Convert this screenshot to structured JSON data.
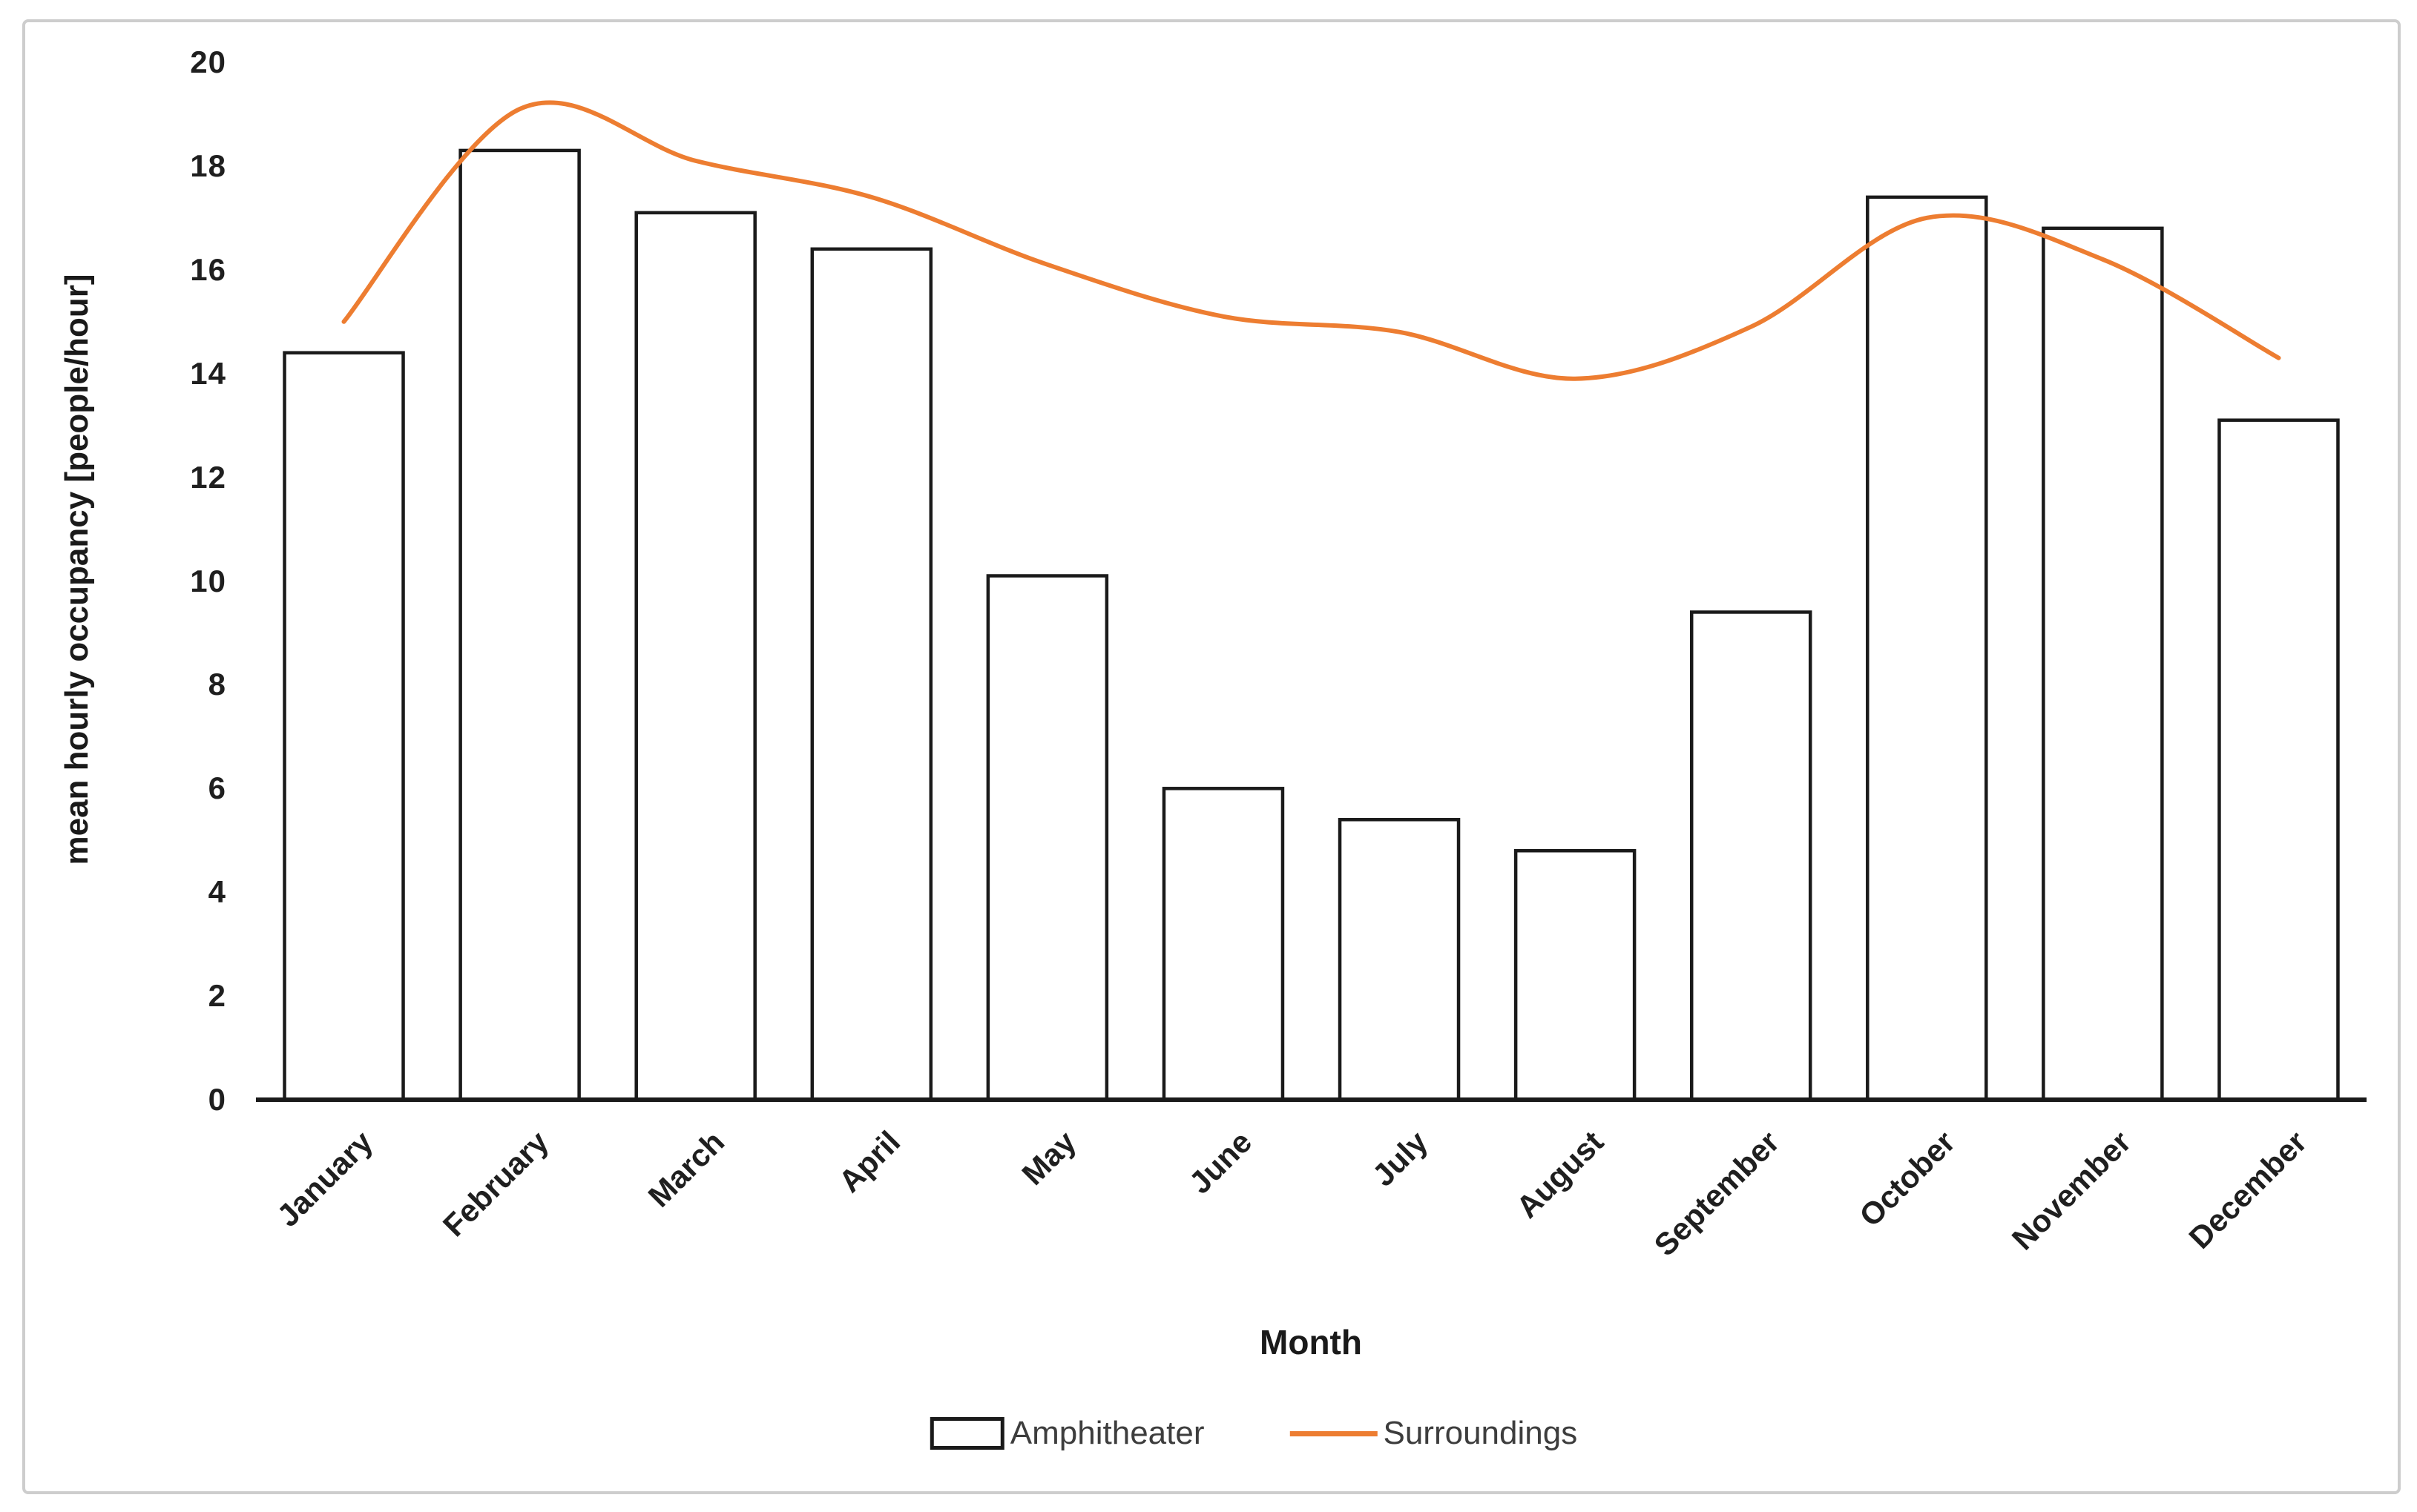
{
  "chart_data": {
    "type": "combo",
    "title": "",
    "xlabel": "Month",
    "ylabel": "mean hourly occupancy [people/hour]",
    "categories": [
      "January",
      "February",
      "March",
      "April",
      "May",
      "June",
      "July",
      "August",
      "September",
      "October",
      "November",
      "December"
    ],
    "series": [
      {
        "name": "Amphitheater",
        "type": "bar",
        "values": [
          14.4,
          18.3,
          17.1,
          16.4,
          10.1,
          6.0,
          5.4,
          4.8,
          9.4,
          17.4,
          16.8,
          13.1
        ]
      },
      {
        "name": "Surroundings",
        "type": "line",
        "smooth": true,
        "values": [
          15.0,
          19.1,
          18.1,
          17.4,
          16.1,
          15.1,
          14.8,
          13.9,
          14.9,
          17.0,
          16.2,
          14.3
        ]
      }
    ],
    "ylim": [
      0,
      20
    ],
    "yticks": [
      0,
      2,
      4,
      6,
      8,
      10,
      12,
      14,
      16,
      18,
      20
    ],
    "grid": false,
    "legend_position": "bottom"
  },
  "legend": {
    "items": [
      {
        "label": "Amphitheater",
        "swatch": "bar-outline"
      },
      {
        "label": "Surroundings",
        "swatch": "line"
      }
    ]
  },
  "colors": {
    "bar_fill": "#ffffff",
    "bar_stroke": "#1a1a1a",
    "line": "#ED7D31",
    "axis": "#1a1a1a",
    "tick_text": "#1f1f1f",
    "legend_text": "#3d3d3d",
    "frame_border": "#cdcdcd"
  }
}
